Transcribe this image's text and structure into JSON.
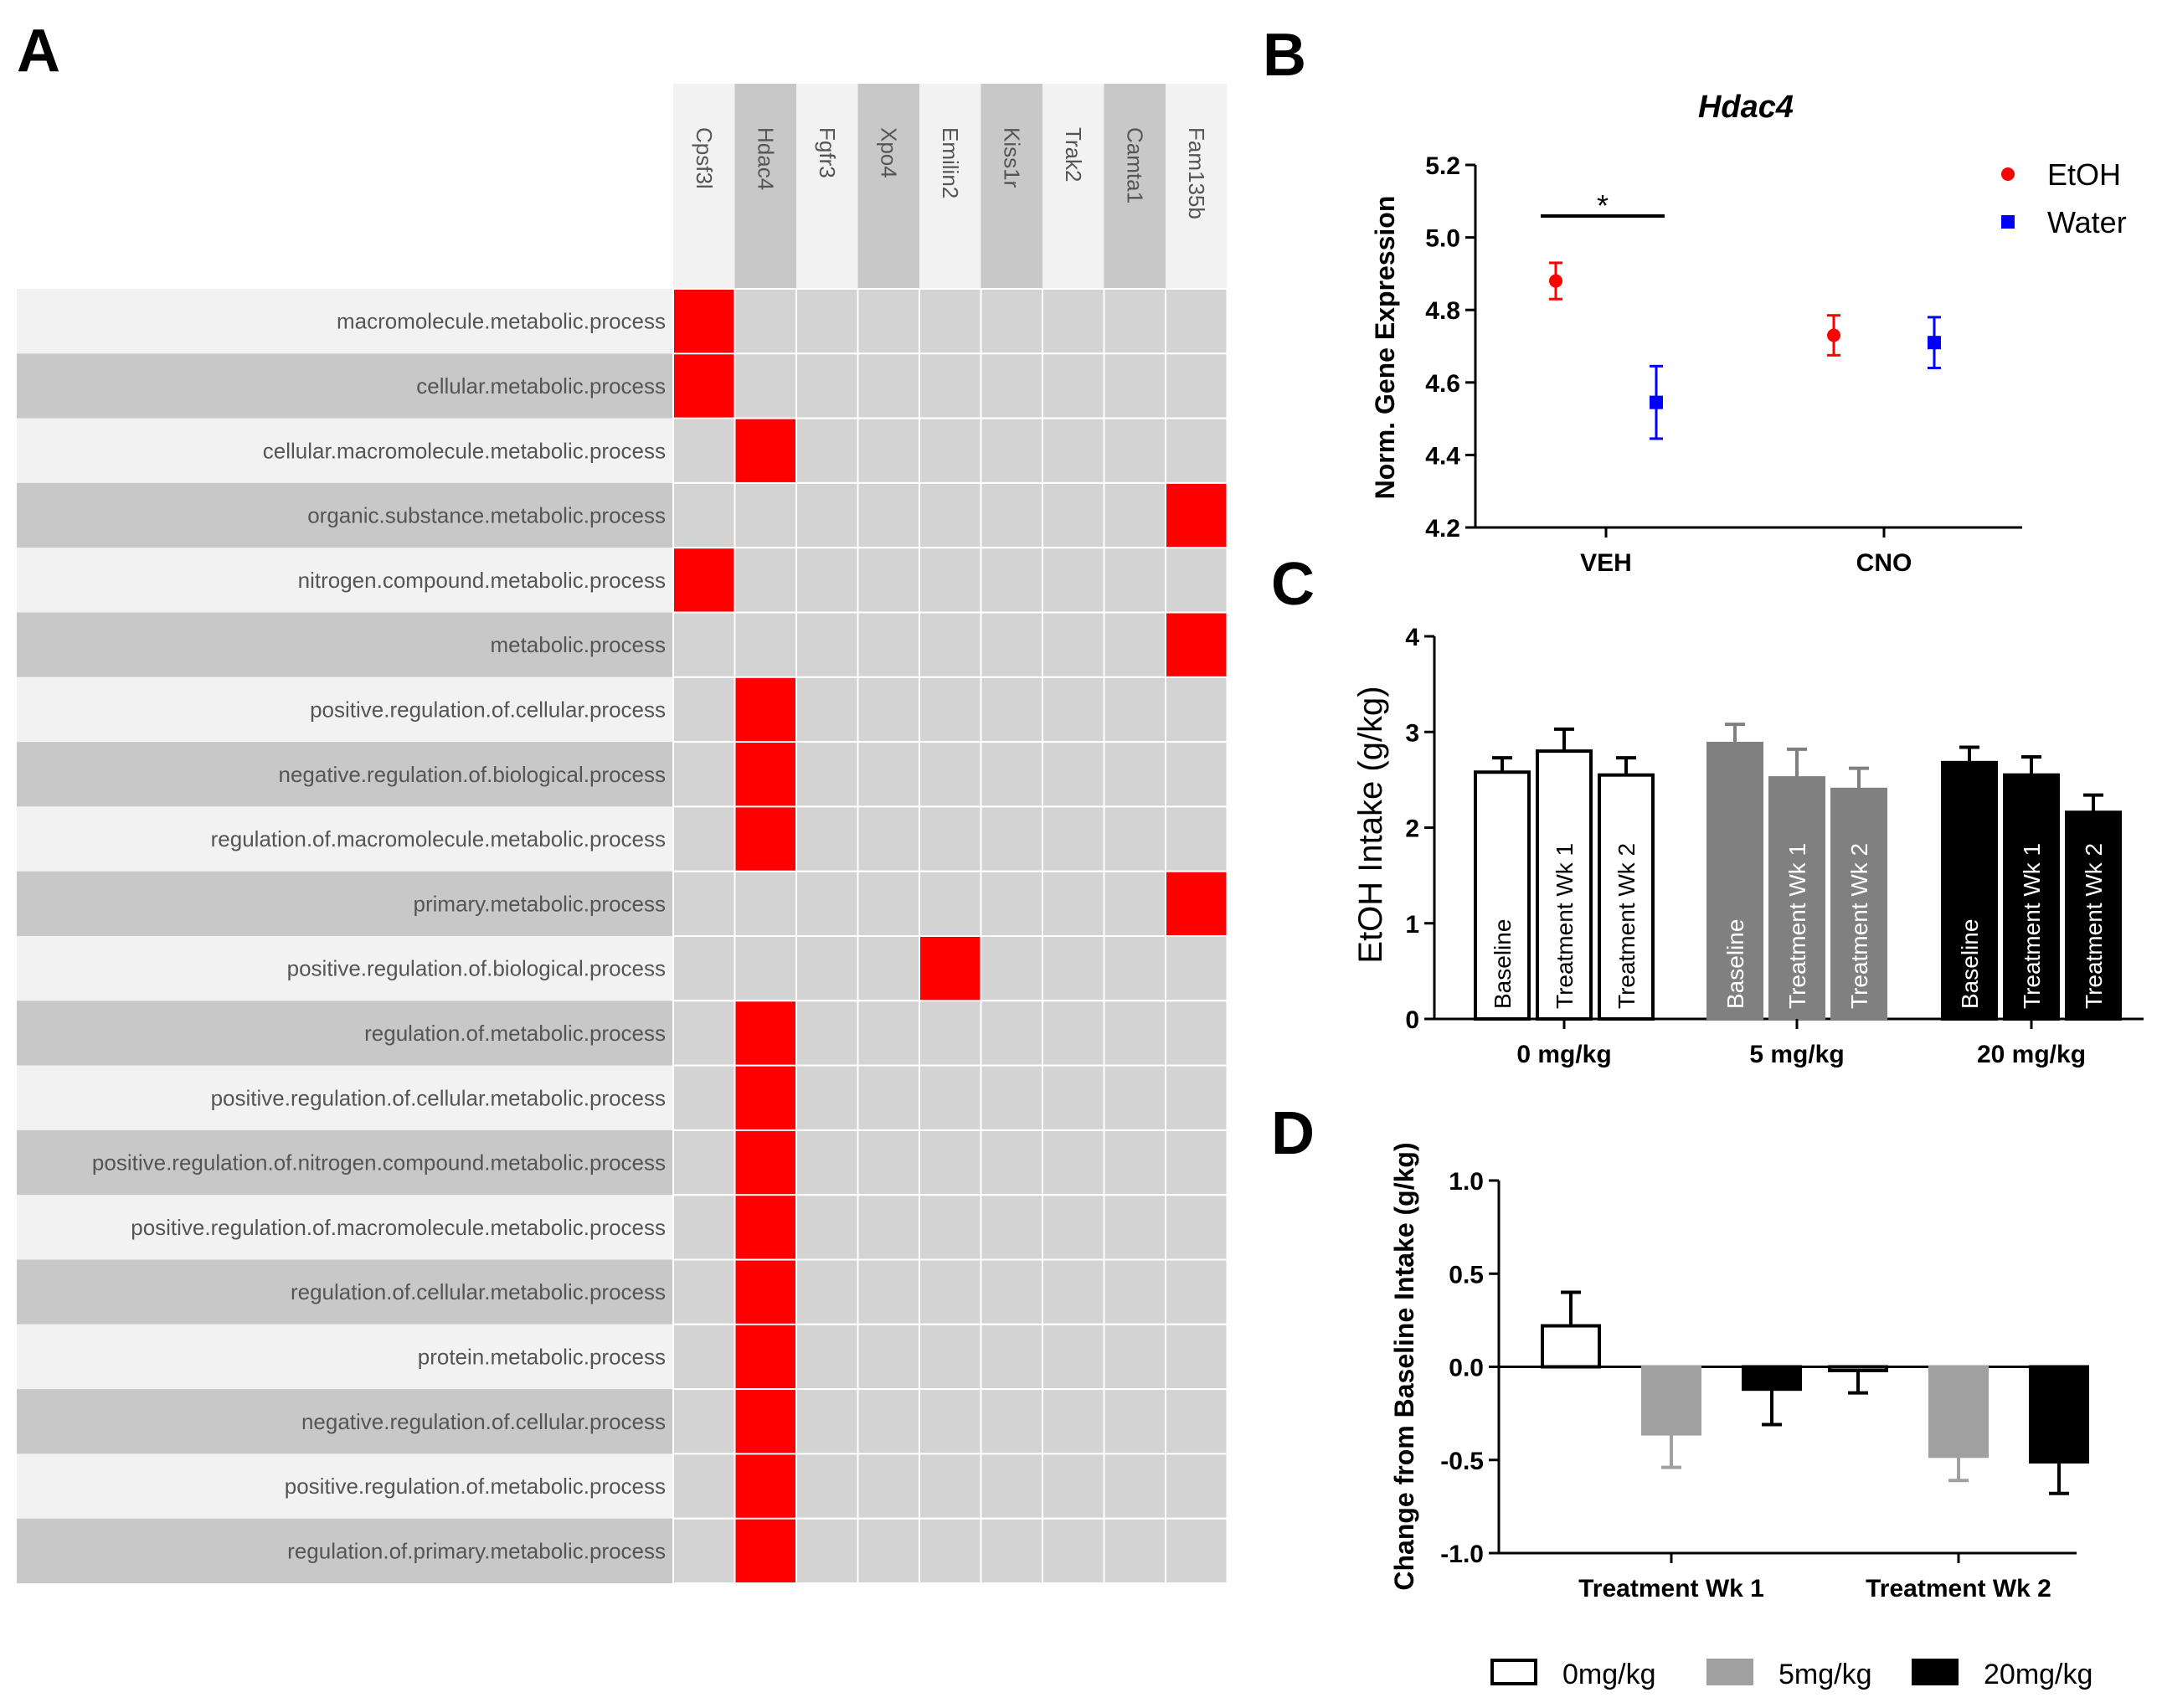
{
  "panel_labels": [
    "A",
    "B",
    "C",
    "D"
  ],
  "colors": {
    "hit": "#ff0000",
    "cell": "#d3d3d3",
    "row_light": "#f2f2f2",
    "row_dark": "#c8c8c8",
    "etoh": "#ff0000",
    "water": "#0000ff",
    "gray_bar": "#808080",
    "gray_bar_d": "#a0a0a0"
  },
  "chart_data": [
    {
      "type": "heatmap",
      "panel": "A",
      "columns": [
        "Cpsf3l",
        "Hdac4",
        "Fgfr3",
        "Xpo4",
        "Emilin2",
        "Kiss1r",
        "Trak2",
        "Camta1",
        "Fam135b"
      ],
      "rows": [
        "macromolecule.metabolic.process",
        "cellular.metabolic.process",
        "cellular.macromolecule.metabolic.process",
        "organic.substance.metabolic.process",
        "nitrogen.compound.metabolic.process",
        "metabolic.process",
        "positive.regulation.of.cellular.process",
        "negative.regulation.of.biological.process",
        "regulation.of.macromolecule.metabolic.process",
        "primary.metabolic.process",
        "positive.regulation.of.biological.process",
        "regulation.of.metabolic.process",
        "positive.regulation.of.cellular.metabolic.process",
        "positive.regulation.of.nitrogen.compound.metabolic.process",
        "positive.regulation.of.macromolecule.metabolic.process",
        "regulation.of.cellular.metabolic.process",
        "protein.metabolic.process",
        "negative.regulation.of.cellular.process",
        "positive.regulation.of.metabolic.process",
        "regulation.of.primary.metabolic.process"
      ],
      "hits": [
        [
          0,
          0
        ],
        [
          1,
          0
        ],
        [
          2,
          1
        ],
        [
          3,
          8
        ],
        [
          4,
          0
        ],
        [
          5,
          8
        ],
        [
          6,
          1
        ],
        [
          7,
          1
        ],
        [
          8,
          1
        ],
        [
          9,
          8
        ],
        [
          10,
          4
        ],
        [
          11,
          1
        ],
        [
          12,
          1
        ],
        [
          13,
          1
        ],
        [
          14,
          1
        ],
        [
          15,
          1
        ],
        [
          16,
          1
        ],
        [
          17,
          1
        ],
        [
          18,
          1
        ],
        [
          19,
          1
        ]
      ]
    },
    {
      "type": "scatter",
      "panel": "B",
      "title": "Hdac4",
      "ylabel": "Norm. Gene Expression",
      "xlabel": "",
      "categories": [
        "VEH",
        "CNO"
      ],
      "ylim": [
        4.2,
        5.2
      ],
      "yticks": [
        "4.2",
        "4.4",
        "4.6",
        "4.8",
        "5.0",
        "5.2"
      ],
      "series": [
        {
          "name": "EtOH",
          "values": [
            4.88,
            4.73
          ],
          "err": [
            0.05,
            0.055
          ]
        },
        {
          "name": "Water",
          "values": [
            4.545,
            4.71
          ],
          "err": [
            0.1,
            0.07
          ]
        }
      ],
      "annotation": "*"
    },
    {
      "type": "bar",
      "panel": "C",
      "ylabel": "EtOH Intake (g/kg)",
      "groups": [
        "0 mg/kg",
        "5 mg/kg",
        "20 mg/kg"
      ],
      "bar_labels": [
        "Baseline",
        "Treatment Wk 1",
        "Treatment Wk 2"
      ],
      "ylim": [
        0,
        4
      ],
      "yticks": [
        "0",
        "1",
        "2",
        "3",
        "4"
      ],
      "values": [
        [
          2.58,
          2.8,
          2.55
        ],
        [
          2.88,
          2.52,
          2.4
        ],
        [
          2.68,
          2.55,
          2.16
        ]
      ],
      "err": [
        [
          0.15,
          0.23,
          0.18
        ],
        [
          0.2,
          0.3,
          0.22
        ],
        [
          0.16,
          0.19,
          0.18
        ]
      ]
    },
    {
      "type": "bar",
      "panel": "D",
      "ylabel": "Change from Baseline Intake (g/kg)",
      "categories": [
        "Treatment Wk 1",
        "Treatment Wk 2"
      ],
      "ylim": [
        -1.0,
        1.0
      ],
      "yticks": [
        "1.0",
        "0.5",
        "0.0",
        "-0.5",
        "-1.0"
      ],
      "series": [
        {
          "name": "0mg/kg",
          "values": [
            0.22,
            -0.02
          ],
          "err": [
            0.18,
            0.12
          ]
        },
        {
          "name": "5mg/kg",
          "values": [
            -0.36,
            -0.48
          ],
          "err": [
            0.18,
            0.13
          ]
        },
        {
          "name": "20mg/kg",
          "values": [
            -0.12,
            -0.51
          ],
          "err": [
            0.19,
            0.17
          ]
        }
      ]
    }
  ]
}
